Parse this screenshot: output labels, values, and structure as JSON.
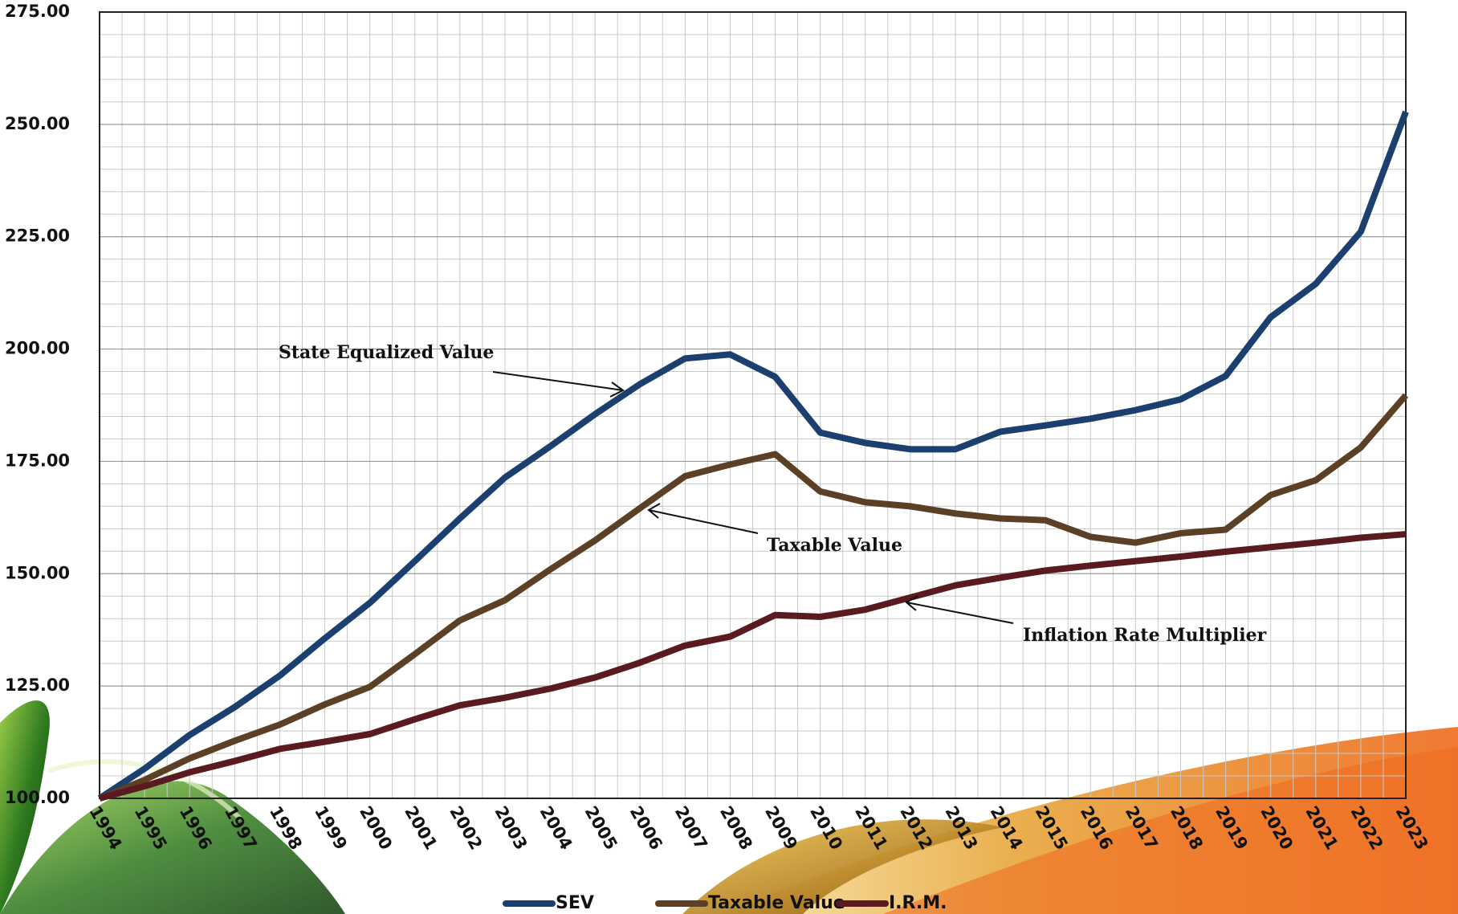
{
  "chart_data": {
    "type": "line",
    "x": [
      "1994",
      "1995",
      "1996",
      "1997",
      "1998",
      "1999",
      "2000",
      "2001",
      "2002",
      "2003",
      "2004",
      "2005",
      "2006",
      "2007",
      "2008",
      "2009",
      "2010",
      "2011",
      "2012",
      "2013",
      "2014",
      "2015",
      "2016",
      "2017",
      "2018",
      "2019",
      "2020",
      "2021",
      "2022",
      "2023"
    ],
    "series": [
      {
        "name": "SEV",
        "color": "#1b3f6e",
        "values": [
          100,
          106.6,
          114.1,
          120.3,
          127.3,
          135.6,
          143.5,
          152.8,
          162.3,
          171.4,
          178.3,
          185.5,
          192.2,
          197.9,
          198.8,
          193.8,
          181.4,
          179.1,
          177.7,
          177.7,
          181.6,
          183.0,
          184.5,
          186.4,
          188.8,
          194.0,
          207.1,
          214.5,
          226.1,
          252.8
        ]
      },
      {
        "name": "Taxable Value",
        "color": "#5b4026",
        "values": [
          100,
          104.1,
          108.9,
          112.8,
          116.4,
          120.9,
          124.8,
          132.1,
          139.6,
          144.1,
          150.9,
          157.4,
          164.6,
          171.7,
          174.3,
          176.6,
          168.3,
          165.9,
          165.0,
          163.4,
          162.3,
          161.9,
          158.2,
          156.9,
          159.0,
          159.8,
          167.5,
          170.8,
          178.1,
          189.7
        ]
      },
      {
        "name": "I.R.M.",
        "color": "#5a1b20",
        "values": [
          100,
          102.7,
          105.8,
          108.3,
          111.0,
          112.6,
          114.3,
          117.6,
          120.7,
          122.4,
          124.4,
          126.9,
          130.2,
          134.0,
          136.0,
          140.8,
          140.4,
          142.0,
          144.7,
          147.4,
          149.1,
          150.7,
          151.8,
          152.8,
          153.8,
          154.9,
          155.9,
          156.9,
          158.0,
          158.8
        ]
      }
    ],
    "ylim": [
      100,
      275
    ],
    "yticks": [
      {
        "value": 100,
        "label": "100.00"
      },
      {
        "value": 125,
        "label": "125.00"
      },
      {
        "value": 150,
        "label": "150.00"
      },
      {
        "value": 175,
        "label": "175.00"
      },
      {
        "value": 200,
        "label": "200.00"
      },
      {
        "value": 225,
        "label": "225.00"
      },
      {
        "value": 250,
        "label": "250.00"
      },
      {
        "value": 275,
        "label": "275.00"
      }
    ],
    "grid": true,
    "legend": "bottom",
    "annotations": [
      "State Equalized Value",
      "Taxable Value",
      "Inflation Rate Multiplier"
    ]
  }
}
